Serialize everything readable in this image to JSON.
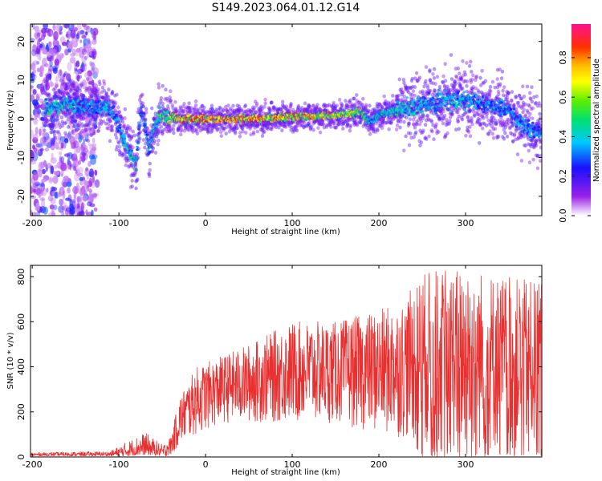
{
  "title": "S149.2023.064.01.12.G14",
  "colors": {
    "snr_line": "#e83030",
    "axis": "#000000",
    "spectrum_floor": "#c8b0f0",
    "spectrum_band": "#3a10e0",
    "spectrum_peak": "#ff3030"
  },
  "chart_data": [
    {
      "type": "heatmap",
      "xlabel": "Height of straight line (km)",
      "ylabel": "Frequency (Hz)",
      "xlim": [
        -202,
        388
      ],
      "ylim": [
        -25,
        24.5
      ],
      "xticks": [
        -200,
        -100,
        0,
        100,
        200,
        300
      ],
      "yticks": [
        -20,
        -10,
        0,
        10,
        20
      ],
      "colorbar": {
        "label": "Normalized spectral amplitude",
        "range": [
          0,
          0.97
        ],
        "ticks": [
          0.0,
          0.2,
          0.4,
          0.6,
          0.8
        ],
        "colormap": "rainbow (purple to magenta)"
      },
      "ridge": {
        "description": "frequency of strongest spectral band vs height",
        "x": [
          -180,
          -160,
          -140,
          -125,
          -115,
          -105,
          -95,
          -85,
          -80,
          -75,
          -70,
          -65,
          -60,
          -55,
          -50,
          -30,
          0,
          50,
          100,
          150,
          180,
          190,
          200,
          220,
          250,
          280,
          300,
          320,
          350,
          370,
          388
        ],
        "y": [
          3,
          4,
          3,
          3,
          3,
          1,
          -5,
          -10,
          -12,
          2,
          -1,
          -8,
          -3,
          0,
          1,
          0,
          0,
          0,
          0.5,
          1,
          1.5,
          -1,
          1,
          2.5,
          3.5,
          5,
          5,
          4,
          2,
          -2,
          -4
        ],
        "peak_amplitude": [
          0.5,
          0.5,
          0.4,
          0.4,
          0.45,
          0.4,
          0.5,
          0.55,
          0.5,
          0.4,
          0.45,
          0.45,
          0.45,
          0.55,
          0.6,
          0.9,
          0.95,
          0.9,
          0.85,
          0.8,
          0.7,
          0.45,
          0.5,
          0.5,
          0.45,
          0.45,
          0.45,
          0.4,
          0.4,
          0.4,
          0.35
        ]
      },
      "noise_region_x": [
        -202,
        -125
      ]
    },
    {
      "type": "line",
      "xlabel": "Height of straight line (km)",
      "ylabel": "SNR (10 * v/v)",
      "xlim": [
        -202,
        388
      ],
      "ylim": [
        0,
        850
      ],
      "xticks": [
        -200,
        -100,
        0,
        100,
        200,
        300
      ],
      "yticks": [
        0,
        200,
        400,
        600,
        800
      ],
      "envelope": {
        "description": "approximate lower and upper bounds of the noisy SNR trace",
        "x": [
          -202,
          -110,
          -90,
          -70,
          -50,
          -40,
          -30,
          -10,
          20,
          50,
          80,
          100,
          150,
          200,
          230,
          250,
          300,
          350,
          388
        ],
        "low": [
          5,
          5,
          5,
          10,
          5,
          5,
          50,
          100,
          150,
          150,
          150,
          150,
          150,
          100,
          80,
          50,
          20,
          20,
          30
        ],
        "high": [
          20,
          25,
          70,
          110,
          55,
          90,
          270,
          400,
          450,
          500,
          560,
          600,
          600,
          650,
          700,
          820,
          850,
          800,
          770
        ]
      }
    }
  ]
}
